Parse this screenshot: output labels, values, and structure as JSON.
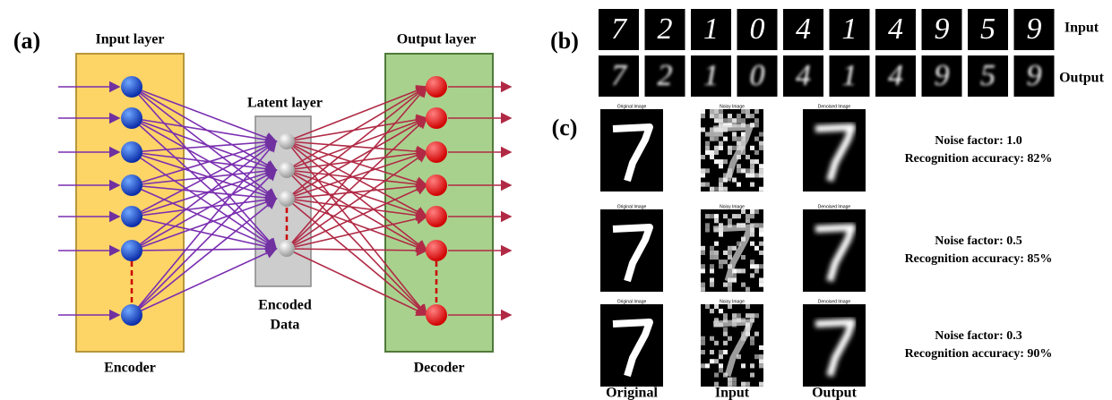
{
  "panel_a": {
    "label": "(a)",
    "input_layer": "Input layer",
    "latent_layer": "Latent layer",
    "output_layer": "Output layer",
    "encoded_data": [
      "Encoded",
      "Data"
    ],
    "encoder": "Encoder",
    "decoder": "Decoder"
  },
  "panel_b": {
    "label": "(b)",
    "digits": [
      "7",
      "2",
      "1",
      "0",
      "4",
      "1",
      "4",
      "9",
      "5",
      "9"
    ],
    "input_label": "Input",
    "output_label": "Output"
  },
  "panel_c": {
    "label": "(c)",
    "rows": [
      {
        "image_titles": [
          "Original Image",
          "Noisy Image",
          "Denoised Image"
        ],
        "noise_factor": "Noise factor: 1.0",
        "accuracy": "Recognition accuracy: 82%"
      },
      {
        "image_titles": [
          "Original Image",
          "Noisy Image",
          "Denoised Image"
        ],
        "noise_factor": "Noise factor: 0.5",
        "accuracy": "Recognition accuracy: 85%"
      },
      {
        "image_titles": [
          "Original Image",
          "Noisy Image",
          "Denoised Image"
        ],
        "noise_factor": "Noise factor: 0.3",
        "accuracy": "Recognition accuracy: 90%"
      }
    ],
    "columns": [
      "Original",
      "Input",
      "Output"
    ]
  }
}
